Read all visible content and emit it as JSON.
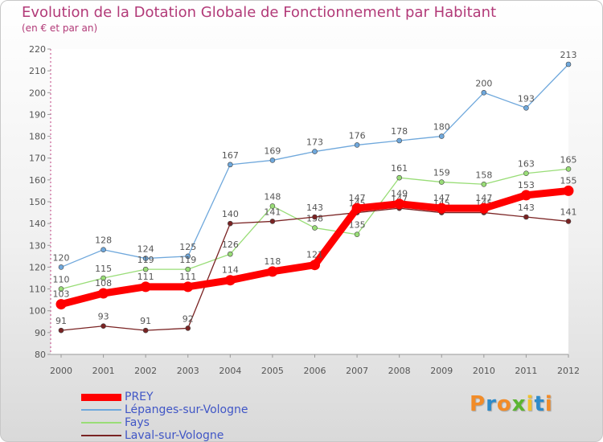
{
  "title": "Evolution de la Dotation Globale de Fonctionnement par Habitant",
  "subtitle": "(en € et par an)",
  "logo": {
    "text": "Proxiti"
  },
  "chart_data": {
    "type": "line",
    "title": "Evolution de la Dotation Globale de Fonctionnement par Habitant",
    "subtitle": "(en € et par an)",
    "x": [
      "2000",
      "2001",
      "2002",
      "2003",
      "2004",
      "2005",
      "2006",
      "2007",
      "2008",
      "2009",
      "2010",
      "2011",
      "2012"
    ],
    "ylim": [
      80,
      220
    ],
    "yticks": [
      "80",
      "90",
      "100",
      "110",
      "120",
      "130",
      "140",
      "150",
      "160",
      "170",
      "180",
      "190",
      "200",
      "210",
      "220"
    ],
    "grid": false,
    "legend_position": "bottom-left",
    "series": [
      {
        "name": "PREY",
        "color": "#ff0000",
        "values": [
          103,
          108,
          111,
          111,
          114,
          118,
          121,
          147,
          149,
          147,
          147,
          153,
          155
        ]
      },
      {
        "name": "Lépanges-sur-Vologne",
        "color": "#6fa8dc",
        "values": [
          120,
          128,
          124,
          125,
          167,
          169,
          173,
          176,
          178,
          180,
          200,
          193,
          213
        ]
      },
      {
        "name": "Fays",
        "color": "#99dd77",
        "values": [
          110,
          115,
          119,
          119,
          126,
          148,
          138,
          135,
          161,
          159,
          158,
          163,
          165
        ]
      },
      {
        "name": "Laval-sur-Vologne",
        "color": "#7a2323",
        "values": [
          91,
          93,
          91,
          92,
          140,
          141,
          143,
          145,
          147,
          145,
          145,
          143,
          141
        ]
      }
    ]
  }
}
